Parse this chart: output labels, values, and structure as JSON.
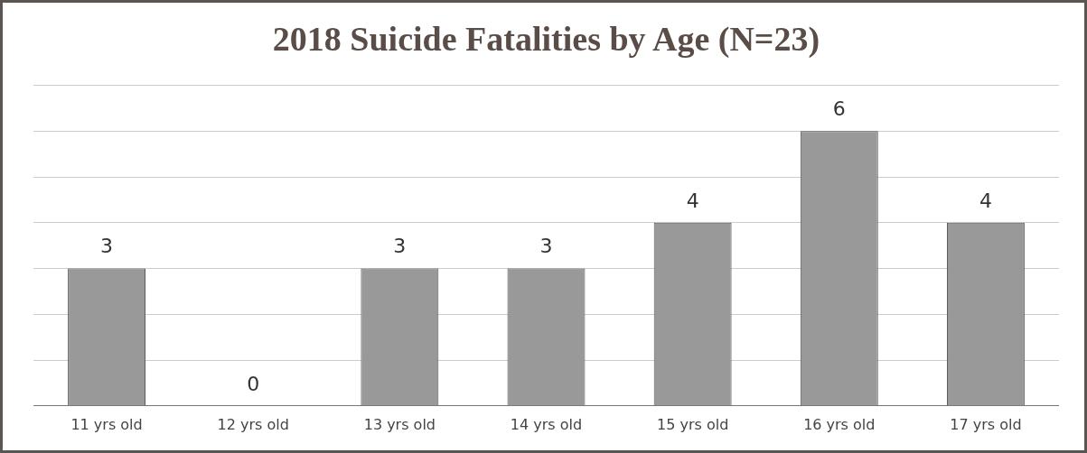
{
  "chart_data": {
    "type": "bar",
    "title": "2018 Suicide Fatalities by Age (N=23)",
    "categories": [
      "11 yrs old",
      "12 yrs old",
      "13 yrs old",
      "14 yrs old",
      "15 yrs old",
      "16 yrs old",
      "17 yrs old"
    ],
    "values": [
      3,
      0,
      3,
      3,
      4,
      6,
      4
    ],
    "color": "#999999",
    "ylim": [
      0,
      7
    ],
    "yticks": [
      {
        "value": 0,
        "label": null
      },
      {
        "value": 1,
        "label": null
      },
      {
        "value": 2,
        "label": null
      },
      {
        "value": 3,
        "label": null
      },
      {
        "value": 4,
        "label": null
      },
      {
        "value": 5,
        "label": null
      },
      {
        "value": 6,
        "label": null
      },
      {
        "value": 7,
        "label": null
      }
    ],
    "tick_labels": "x",
    "grid": "y",
    "data_labels": true
  }
}
